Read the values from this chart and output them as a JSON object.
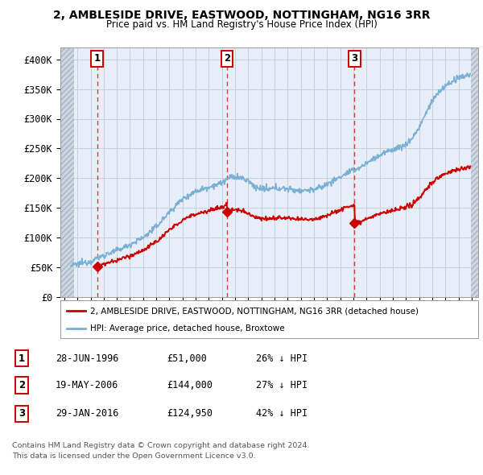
{
  "title1": "2, AMBLESIDE DRIVE, EASTWOOD, NOTTINGHAM, NG16 3RR",
  "title2": "Price paid vs. HM Land Registry's House Price Index (HPI)",
  "ylim": [
    0,
    420000
  ],
  "yticks": [
    0,
    50000,
    100000,
    150000,
    200000,
    250000,
    300000,
    350000,
    400000
  ],
  "ytick_labels": [
    "£0",
    "£50K",
    "£100K",
    "£150K",
    "£200K",
    "£250K",
    "£300K",
    "£350K",
    "£400K"
  ],
  "xlim_start": 1993.7,
  "xlim_end": 2025.5,
  "sale_dates": [
    1996.49,
    2006.38,
    2016.08
  ],
  "sale_prices": [
    51000,
    144000,
    124950
  ],
  "sale_labels": [
    "1",
    "2",
    "3"
  ],
  "legend_red": "2, AMBLESIDE DRIVE, EASTWOOD, NOTTINGHAM, NG16 3RR (detached house)",
  "legend_blue": "HPI: Average price, detached house, Broxtowe",
  "table_rows": [
    [
      "1",
      "28-JUN-1996",
      "£51,000",
      "26% ↓ HPI"
    ],
    [
      "2",
      "19-MAY-2006",
      "£144,000",
      "27% ↓ HPI"
    ],
    [
      "3",
      "29-JAN-2016",
      "£124,950",
      "42% ↓ HPI"
    ]
  ],
  "footnote1": "Contains HM Land Registry data © Crown copyright and database right 2024.",
  "footnote2": "This data is licensed under the Open Government Licence v3.0.",
  "hatch_left_start": 1993.7,
  "hatch_left_end": 1994.75,
  "hatch_right_start": 2024.92,
  "hatch_right_end": 2025.5,
  "red_line_color": "#cc0000",
  "blue_line_color": "#7ab0d4",
  "background_plot": "#e8eef8",
  "grid_color": "#c8d0dc"
}
